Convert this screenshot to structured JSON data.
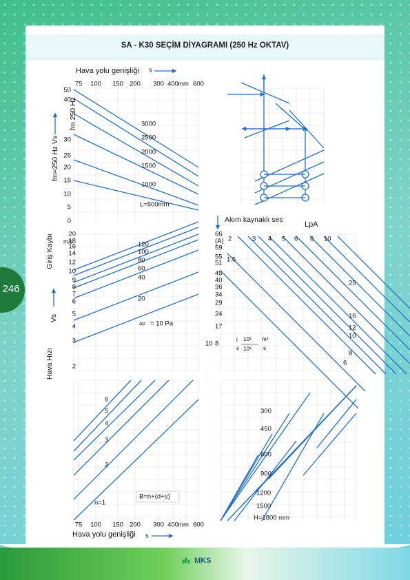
{
  "header": {
    "title": "SA - K30 SEÇİM DİYAGRAMI (250 Hz OKTAV)"
  },
  "page_number": "246",
  "footer": {
    "logo": "MKS"
  },
  "diagram": {
    "top_axis": {
      "label": "Hava yolu genişliği",
      "symbol": "s",
      "ticks": [
        75,
        100,
        150,
        200,
        300,
        400,
        "mm",
        600
      ]
    },
    "upper_left": {
      "axis_title": "fm 250 Hz",
      "outer_label": "fm=250 Hz Vs",
      "yticks": [
        50,
        40,
        30,
        25,
        20,
        15,
        10,
        5,
        0
      ],
      "line_labels": [
        3000,
        2500,
        2000,
        1500,
        1000,
        "L=500mm"
      ]
    },
    "middle_left": {
      "axis_title": "Giriş Kaybı",
      "unit": "m/s",
      "vs_label": "Vs",
      "speed_label": "Hava Hızı",
      "yticks": [
        20,
        18,
        16,
        14,
        12,
        10,
        9,
        8,
        7,
        6,
        5,
        4,
        3,
        2
      ],
      "line_labels": [
        120,
        100,
        80,
        60,
        40,
        20
      ],
      "dp_symbol": "Δp",
      "dp_value": "= 10 Pa"
    },
    "middle_right": {
      "title": "Akım kaynaklı ses",
      "lpa": "LpA",
      "left_ticks": [
        66,
        "(A)",
        59,
        55,
        51,
        45,
        40,
        36,
        34,
        29,
        24,
        17,
        10,
        8
      ],
      "extra": 1.5,
      "top_ticks": [
        2,
        3,
        4,
        5,
        6,
        8,
        10
      ],
      "right_ticks": [
        25,
        16,
        12,
        10,
        8,
        6
      ],
      "units": [
        "l",
        "s",
        "10³",
        "10³",
        "m³",
        "s"
      ]
    },
    "bottom_left": {
      "line_labels": [
        6,
        5,
        4,
        3,
        2,
        "n=1"
      ],
      "formula": "B=n+(d+s)"
    },
    "bottom_right": {
      "line_labels": [
        300,
        450,
        600,
        900,
        1200,
        1500,
        "H=1800 mm"
      ]
    },
    "bottom_axis": {
      "label": "Hava yolu genişliği",
      "symbol": "s",
      "ticks": [
        75,
        100,
        150,
        200,
        300,
        400,
        "mm",
        600
      ]
    }
  }
}
